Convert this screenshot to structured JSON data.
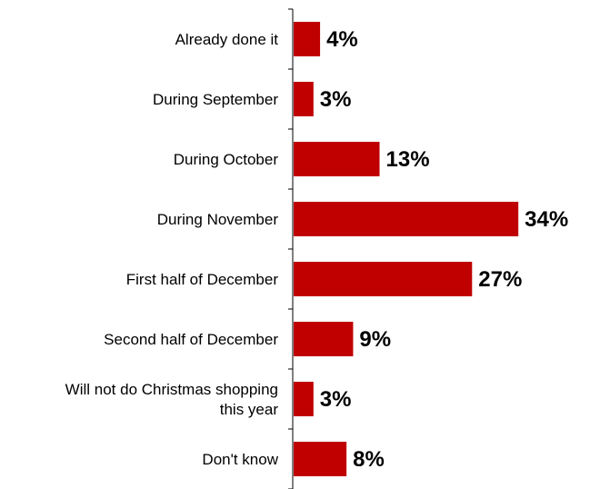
{
  "chart_data": {
    "type": "bar",
    "orientation": "horizontal",
    "categories": [
      "Already done it",
      "During September",
      "During October",
      "During November",
      "First half of December",
      "Second half of December",
      "Will not do Christmas shopping this year",
      "Don't know"
    ],
    "category_label_lines": [
      [
        "Already done it"
      ],
      [
        "During September"
      ],
      [
        "During October"
      ],
      [
        "During November"
      ],
      [
        "First half of December"
      ],
      [
        "Second half of December"
      ],
      [
        "Will not do Christmas shopping",
        "this year"
      ],
      [
        "Don't know"
      ]
    ],
    "values": [
      4,
      3,
      13,
      34,
      27,
      9,
      3,
      8
    ],
    "value_labels": [
      "4%",
      "3%",
      "13%",
      "34%",
      "27%",
      "9%",
      "3%",
      "8%"
    ],
    "title": "",
    "xlabel": "",
    "ylabel": "",
    "xlim": [
      0,
      34
    ],
    "grid": false,
    "legend": "none",
    "bar_color": "#C00000",
    "axis_color": "#000000"
  }
}
